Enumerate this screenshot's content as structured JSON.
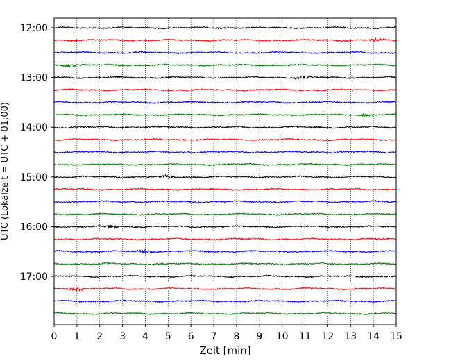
{
  "chart_data": {
    "type": "line",
    "title": "",
    "xlabel": "Zeit  [min]",
    "ylabel": "UTC (Lokalzeit = UTC + 01:00)",
    "xlim": [
      0,
      15
    ],
    "x_ticks": [
      0,
      1,
      2,
      3,
      4,
      5,
      6,
      7,
      8,
      9,
      10,
      11,
      12,
      13,
      14,
      15
    ],
    "x_grid": "dotted vertical lines at each minute",
    "y_tick_labels": [
      "12:00",
      "13:00",
      "14:00",
      "15:00",
      "16:00",
      "17:00"
    ],
    "trace_interval_minutes": 15,
    "trace_start": "12:00",
    "trace_end": "17:45",
    "trace_count": 24,
    "trace_colors_cycle": [
      "#000000",
      "#ff0000",
      "#0000ff",
      "#008000"
    ],
    "events": [
      {
        "trace": "12:15",
        "x_min": 14.1,
        "note": "small burst"
      },
      {
        "trace": "12:45",
        "x_min": 0.8,
        "note": "small wiggle"
      },
      {
        "trace": "13:00",
        "x_min": 10.9,
        "note": "dip"
      },
      {
        "trace": "13:45",
        "x_min": 13.6,
        "note": "bump"
      },
      {
        "trace": "15:00",
        "x_min": 5.0,
        "note": "wiggle"
      },
      {
        "trace": "16:00",
        "x_min": 2.5,
        "note": "bump"
      },
      {
        "trace": "16:30",
        "x_min": 4.0,
        "note": "bump"
      },
      {
        "trace": "17:15",
        "x_min": 1.0,
        "note": "wiggle"
      }
    ]
  }
}
